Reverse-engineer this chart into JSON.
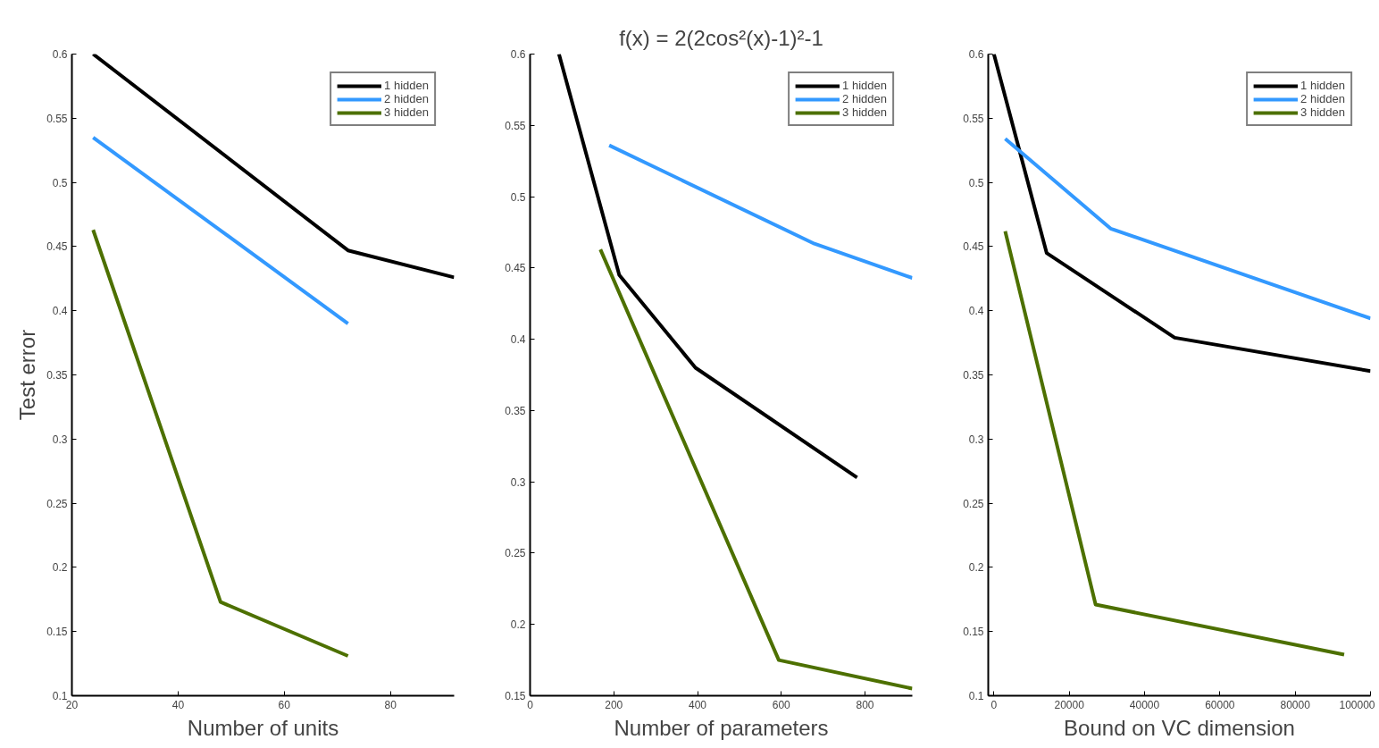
{
  "chart_data": [
    {
      "type": "line",
      "ylabel": "Test error",
      "xlabel": "Number of units",
      "xlim": [
        20,
        92
      ],
      "ylim": [
        0.1,
        0.6
      ],
      "xticks": [
        20,
        40,
        60,
        80
      ],
      "yticks": [
        0.1,
        0.15,
        0.2,
        0.25,
        0.3,
        0.35,
        0.4,
        0.45,
        0.5,
        0.55,
        0.6
      ],
      "grid": false,
      "legend": "top right",
      "series": [
        {
          "name": "1 hidden",
          "color": "#000000",
          "x": [
            24,
            72,
            92
          ],
          "values": [
            0.6,
            0.447,
            0.426
          ]
        },
        {
          "name": "2 hidden",
          "color": "#3399ff",
          "x": [
            24,
            72
          ],
          "values": [
            0.535,
            0.39
          ]
        },
        {
          "name": "3 hidden",
          "color": "#4d7000",
          "x": [
            24,
            48,
            72
          ],
          "values": [
            0.463,
            0.173,
            0.131
          ]
        }
      ]
    },
    {
      "type": "line",
      "title": "f(x) = 2(2cos²(x)-1)²-1",
      "xlabel": "Number of parameters",
      "xlim": [
        0,
        913
      ],
      "ylim": [
        0.15,
        0.6
      ],
      "xticks": [
        0,
        200,
        400,
        600,
        800
      ],
      "yticks": [
        0.15,
        0.2,
        0.25,
        0.3,
        0.35,
        0.4,
        0.45,
        0.5,
        0.55,
        0.6
      ],
      "grid": false,
      "legend": "top right",
      "series": [
        {
          "name": "1 hidden",
          "color": "#000000",
          "x": [
            69,
            213,
            395,
            781
          ],
          "values": [
            0.6,
            0.445,
            0.38,
            0.303
          ]
        },
        {
          "name": "2 hidden",
          "color": "#3399ff",
          "x": [
            189,
            679,
            913
          ],
          "values": [
            0.536,
            0.467,
            0.443
          ]
        },
        {
          "name": "3 hidden",
          "color": "#4d7000",
          "x": [
            168,
            594,
            913
          ],
          "values": [
            0.463,
            0.175,
            0.155
          ]
        }
      ]
    },
    {
      "type": "line",
      "xlabel": "Bound on VC dimension",
      "xlim": [
        -1500,
        100000
      ],
      "ylim": [
        0.1,
        0.6
      ],
      "xticks": [
        0,
        20000,
        40000,
        60000,
        80000,
        100000
      ],
      "yticks": [
        0.1,
        0.15,
        0.2,
        0.25,
        0.3,
        0.35,
        0.4,
        0.45,
        0.5,
        0.55,
        0.6
      ],
      "grid": false,
      "legend": "top right",
      "series": [
        {
          "name": "1 hidden",
          "color": "#000000",
          "x": [
            0,
            14000,
            48000,
            100000
          ],
          "values": [
            0.6,
            0.445,
            0.379,
            0.353
          ]
        },
        {
          "name": "2 hidden",
          "color": "#3399ff",
          "x": [
            3000,
            31000,
            100000
          ],
          "values": [
            0.534,
            0.464,
            0.394
          ]
        },
        {
          "name": "3 hidden",
          "color": "#4d7000",
          "x": [
            3000,
            27000,
            93000
          ],
          "values": [
            0.462,
            0.171,
            0.132
          ]
        }
      ]
    }
  ]
}
